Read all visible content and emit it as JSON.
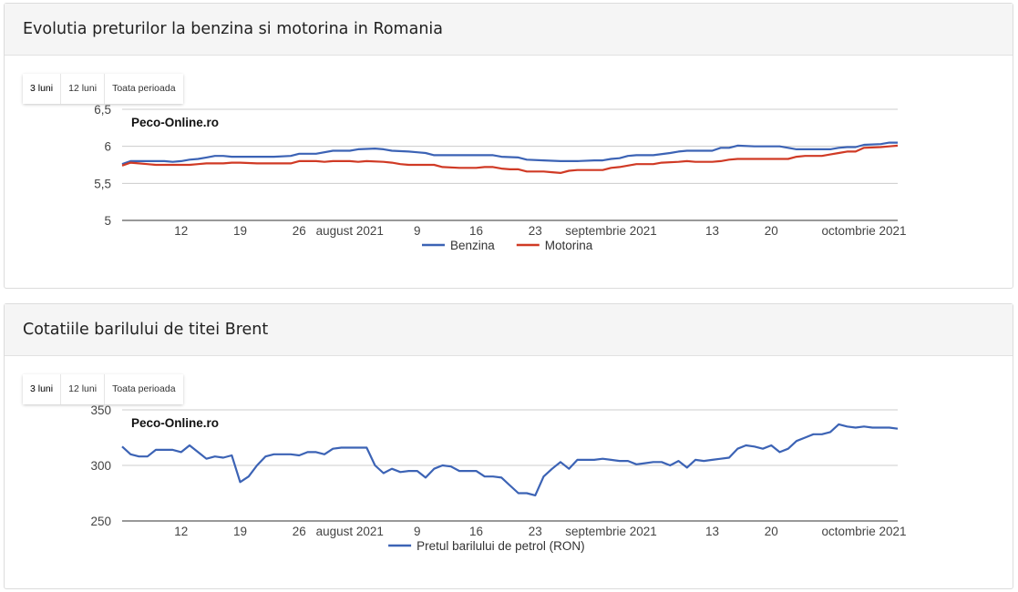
{
  "watermark": "Peco-Online.ro",
  "panels": [
    {
      "title": "Evolutia preturilor la benzina si motorina in Romania",
      "range_buttons": [
        "3 luni",
        "12 luni",
        "Toata perioada"
      ],
      "active_range": "3 luni"
    },
    {
      "title": "Cotatiile barilului de titei Brent",
      "range_buttons": [
        "3 luni",
        "12 luni",
        "Toata perioada"
      ],
      "active_range": "3 luni"
    }
  ],
  "chart_data": [
    {
      "type": "line",
      "title": "",
      "xlabel": "",
      "ylabel": "",
      "x_range": [
        0,
        92
      ],
      "ylim": [
        5,
        6.5
      ],
      "y_ticks": [
        5,
        5.5,
        6,
        6.5
      ],
      "y_tick_labels": [
        "5",
        "5,5",
        "6",
        "6,5"
      ],
      "x_ticks": [
        {
          "x": 7,
          "label": "12"
        },
        {
          "x": 14,
          "label": "19"
        },
        {
          "x": 21,
          "label": "26"
        },
        {
          "x": 27,
          "label": "august 2021"
        },
        {
          "x": 35,
          "label": "9"
        },
        {
          "x": 42,
          "label": "16"
        },
        {
          "x": 49,
          "label": "23"
        },
        {
          "x": 58,
          "label": "septembrie 2021"
        },
        {
          "x": 70,
          "label": "13"
        },
        {
          "x": 77,
          "label": "20"
        },
        {
          "x": 88,
          "label": "octombrie 2021"
        }
      ],
      "grid": true,
      "legend_position": "bottom",
      "colors": {
        "Benzina": "#3c63b5",
        "Motorina": "#d03a25"
      },
      "series": [
        {
          "name": "Benzina",
          "points": [
            [
              0,
              5.76
            ],
            [
              1,
              5.8
            ],
            [
              3,
              5.8
            ],
            [
              5,
              5.8
            ],
            [
              6,
              5.79
            ],
            [
              7,
              5.8
            ],
            [
              8,
              5.82
            ],
            [
              9,
              5.83
            ],
            [
              10,
              5.85
            ],
            [
              11,
              5.87
            ],
            [
              12,
              5.87
            ],
            [
              13,
              5.86
            ],
            [
              14,
              5.86
            ],
            [
              16,
              5.86
            ],
            [
              18,
              5.86
            ],
            [
              20,
              5.87
            ],
            [
              21,
              5.9
            ],
            [
              23,
              5.9
            ],
            [
              25,
              5.94
            ],
            [
              27,
              5.94
            ],
            [
              28,
              5.96
            ],
            [
              30,
              5.97
            ],
            [
              31,
              5.96
            ],
            [
              32,
              5.94
            ],
            [
              34,
              5.93
            ],
            [
              35,
              5.92
            ],
            [
              36,
              5.91
            ],
            [
              37,
              5.88
            ],
            [
              39,
              5.88
            ],
            [
              41,
              5.88
            ],
            [
              43,
              5.88
            ],
            [
              44,
              5.88
            ],
            [
              45,
              5.86
            ],
            [
              47,
              5.85
            ],
            [
              48,
              5.82
            ],
            [
              50,
              5.81
            ],
            [
              52,
              5.8
            ],
            [
              54,
              5.8
            ],
            [
              56,
              5.81
            ],
            [
              57,
              5.81
            ],
            [
              58,
              5.83
            ],
            [
              59,
              5.84
            ],
            [
              60,
              5.87
            ],
            [
              61,
              5.88
            ],
            [
              63,
              5.88
            ],
            [
              65,
              5.91
            ],
            [
              66,
              5.93
            ],
            [
              67,
              5.94
            ],
            [
              69,
              5.94
            ],
            [
              70,
              5.94
            ],
            [
              71,
              5.98
            ],
            [
              72,
              5.98
            ],
            [
              73,
              6.01
            ],
            [
              75,
              6.0
            ],
            [
              76,
              6.0
            ],
            [
              77,
              6.0
            ],
            [
              78,
              6.0
            ],
            [
              79,
              5.98
            ],
            [
              80,
              5.96
            ],
            [
              82,
              5.96
            ],
            [
              84,
              5.96
            ],
            [
              85,
              5.98
            ],
            [
              86,
              5.99
            ],
            [
              87,
              5.99
            ],
            [
              88,
              6.02
            ],
            [
              90,
              6.03
            ],
            [
              91,
              6.05
            ],
            [
              92,
              6.05
            ]
          ]
        },
        {
          "name": "Motorina",
          "points": [
            [
              0,
              5.74
            ],
            [
              1,
              5.78
            ],
            [
              2,
              5.77
            ],
            [
              3,
              5.76
            ],
            [
              4,
              5.75
            ],
            [
              6,
              5.75
            ],
            [
              8,
              5.75
            ],
            [
              9,
              5.76
            ],
            [
              10,
              5.77
            ],
            [
              12,
              5.77
            ],
            [
              13,
              5.78
            ],
            [
              14,
              5.78
            ],
            [
              16,
              5.77
            ],
            [
              18,
              5.77
            ],
            [
              20,
              5.77
            ],
            [
              21,
              5.8
            ],
            [
              23,
              5.8
            ],
            [
              24,
              5.79
            ],
            [
              25,
              5.8
            ],
            [
              27,
              5.8
            ],
            [
              28,
              5.79
            ],
            [
              29,
              5.8
            ],
            [
              31,
              5.79
            ],
            [
              32,
              5.78
            ],
            [
              33,
              5.76
            ],
            [
              34,
              5.75
            ],
            [
              36,
              5.75
            ],
            [
              37,
              5.75
            ],
            [
              38,
              5.72
            ],
            [
              40,
              5.71
            ],
            [
              42,
              5.71
            ],
            [
              43,
              5.72
            ],
            [
              44,
              5.72
            ],
            [
              45,
              5.7
            ],
            [
              46,
              5.69
            ],
            [
              47,
              5.69
            ],
            [
              48,
              5.66
            ],
            [
              50,
              5.66
            ],
            [
              51,
              5.65
            ],
            [
              52,
              5.64
            ],
            [
              53,
              5.67
            ],
            [
              54,
              5.68
            ],
            [
              56,
              5.68
            ],
            [
              57,
              5.68
            ],
            [
              58,
              5.71
            ],
            [
              59,
              5.72
            ],
            [
              60,
              5.74
            ],
            [
              61,
              5.76
            ],
            [
              63,
              5.76
            ],
            [
              64,
              5.78
            ],
            [
              66,
              5.79
            ],
            [
              67,
              5.8
            ],
            [
              68,
              5.79
            ],
            [
              70,
              5.79
            ],
            [
              71,
              5.8
            ],
            [
              72,
              5.82
            ],
            [
              73,
              5.83
            ],
            [
              76,
              5.83
            ],
            [
              79,
              5.83
            ],
            [
              80,
              5.86
            ],
            [
              81,
              5.87
            ],
            [
              82,
              5.87
            ],
            [
              83,
              5.87
            ],
            [
              84,
              5.89
            ],
            [
              85,
              5.91
            ],
            [
              86,
              5.93
            ],
            [
              87,
              5.93
            ],
            [
              88,
              5.98
            ],
            [
              90,
              5.99
            ],
            [
              91,
              6.0
            ],
            [
              92,
              6.01
            ]
          ]
        }
      ]
    },
    {
      "type": "line",
      "title": "",
      "xlabel": "",
      "ylabel": "",
      "x_range": [
        0,
        92
      ],
      "ylim": [
        250,
        350
      ],
      "y_ticks": [
        250,
        300,
        350
      ],
      "y_tick_labels": [
        "250",
        "300",
        "350"
      ],
      "x_ticks": [
        {
          "x": 7,
          "label": "12"
        },
        {
          "x": 14,
          "label": "19"
        },
        {
          "x": 21,
          "label": "26"
        },
        {
          "x": 27,
          "label": "august 2021"
        },
        {
          "x": 35,
          "label": "9"
        },
        {
          "x": 42,
          "label": "16"
        },
        {
          "x": 49,
          "label": "23"
        },
        {
          "x": 58,
          "label": "septembrie 2021"
        },
        {
          "x": 70,
          "label": "13"
        },
        {
          "x": 77,
          "label": "20"
        },
        {
          "x": 88,
          "label": "octombrie 2021"
        }
      ],
      "grid": true,
      "legend_position": "bottom",
      "colors": {
        "Pretul barilului de petrol (RON)": "#3c63b5"
      },
      "series": [
        {
          "name": "Pretul barilului de petrol (RON)",
          "points": [
            [
              0,
              317
            ],
            [
              1,
              310
            ],
            [
              2,
              308
            ],
            [
              3,
              308
            ],
            [
              4,
              314
            ],
            [
              5,
              314
            ],
            [
              6,
              314
            ],
            [
              7,
              312
            ],
            [
              8,
              318
            ],
            [
              9,
              312
            ],
            [
              10,
              306
            ],
            [
              11,
              308
            ],
            [
              12,
              307
            ],
            [
              13,
              309
            ],
            [
              14,
              285
            ],
            [
              15,
              290
            ],
            [
              16,
              300
            ],
            [
              17,
              308
            ],
            [
              18,
              310
            ],
            [
              19,
              310
            ],
            [
              20,
              310
            ],
            [
              21,
              309
            ],
            [
              22,
              312
            ],
            [
              23,
              312
            ],
            [
              24,
              310
            ],
            [
              25,
              315
            ],
            [
              26,
              316
            ],
            [
              27,
              316
            ],
            [
              28,
              316
            ],
            [
              29,
              316
            ],
            [
              30,
              300
            ],
            [
              31,
              293
            ],
            [
              32,
              297
            ],
            [
              33,
              294
            ],
            [
              34,
              295
            ],
            [
              35,
              295
            ],
            [
              36,
              289
            ],
            [
              37,
              297
            ],
            [
              38,
              300
            ],
            [
              39,
              299
            ],
            [
              40,
              295
            ],
            [
              41,
              295
            ],
            [
              42,
              295
            ],
            [
              43,
              290
            ],
            [
              44,
              290
            ],
            [
              45,
              289
            ],
            [
              46,
              282
            ],
            [
              47,
              275
            ],
            [
              48,
              275
            ],
            [
              49,
              273
            ],
            [
              50,
              290
            ],
            [
              51,
              297
            ],
            [
              52,
              303
            ],
            [
              53,
              297
            ],
            [
              54,
              305
            ],
            [
              55,
              305
            ],
            [
              56,
              305
            ],
            [
              57,
              306
            ],
            [
              58,
              305
            ],
            [
              59,
              304
            ],
            [
              60,
              304
            ],
            [
              61,
              301
            ],
            [
              62,
              302
            ],
            [
              63,
              303
            ],
            [
              64,
              303
            ],
            [
              65,
              300
            ],
            [
              66,
              304
            ],
            [
              67,
              298
            ],
            [
              68,
              305
            ],
            [
              69,
              304
            ],
            [
              70,
              305
            ],
            [
              71,
              306
            ],
            [
              72,
              307
            ],
            [
              73,
              315
            ],
            [
              74,
              318
            ],
            [
              75,
              317
            ],
            [
              76,
              315
            ],
            [
              77,
              318
            ],
            [
              78,
              312
            ],
            [
              79,
              315
            ],
            [
              80,
              322
            ],
            [
              81,
              325
            ],
            [
              82,
              328
            ],
            [
              83,
              328
            ],
            [
              84,
              330
            ],
            [
              85,
              337
            ],
            [
              86,
              335
            ],
            [
              87,
              334
            ],
            [
              88,
              335
            ],
            [
              89,
              334
            ],
            [
              90,
              334
            ],
            [
              91,
              334
            ],
            [
              92,
              333
            ]
          ]
        }
      ]
    }
  ]
}
